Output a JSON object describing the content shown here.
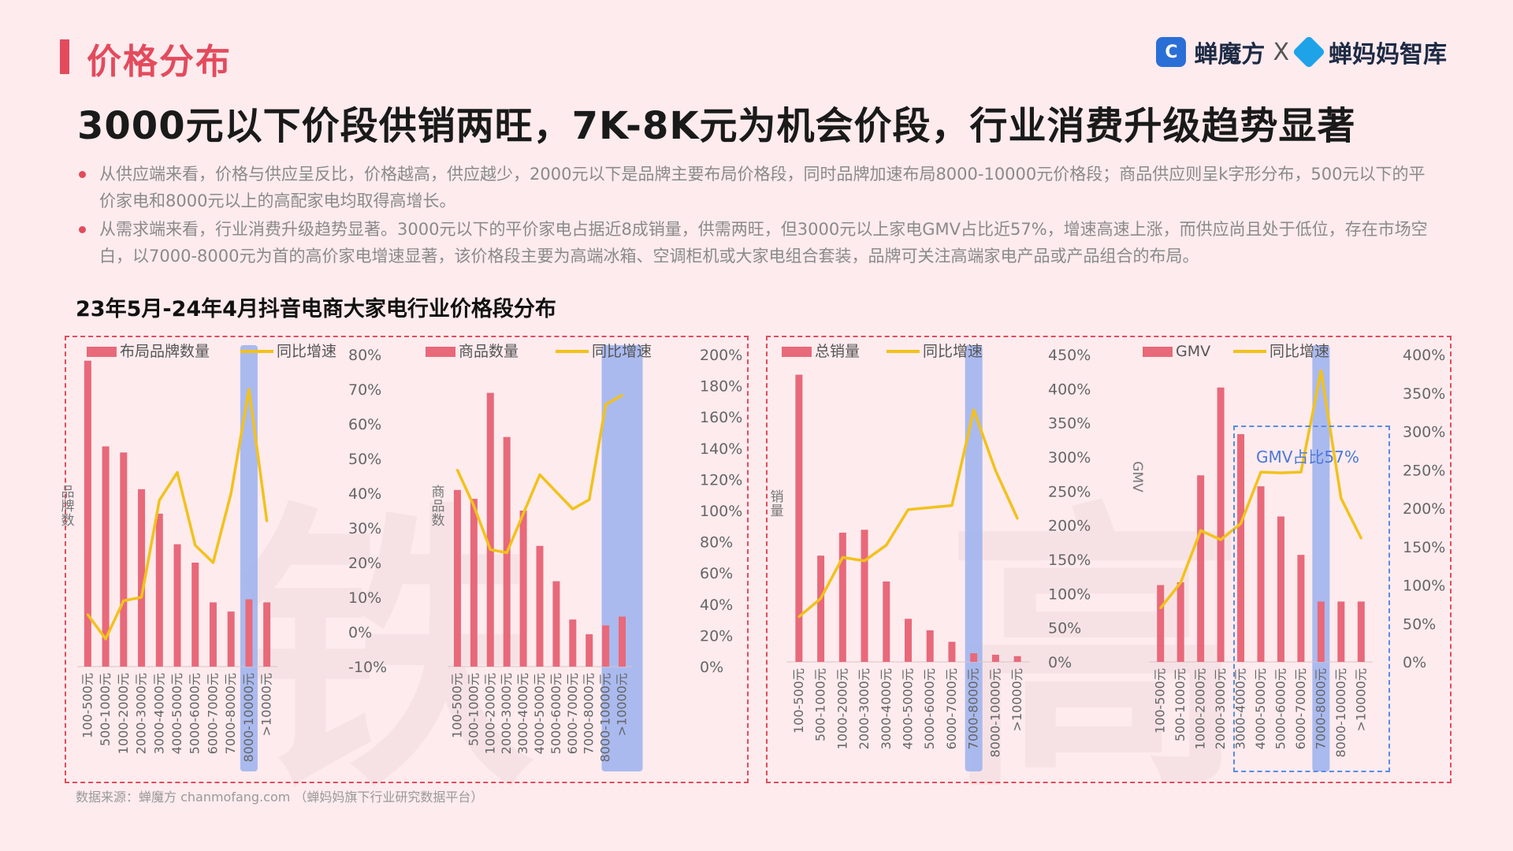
{
  "header": {
    "section_title": "价格分布",
    "headline": "3000元以下价段供销两旺，7K-8K元为机会价段，行业消费升级趋势显著",
    "logo_left": "蝉魔方",
    "logo_sep": "X",
    "logo_right": "蝉妈妈智库"
  },
  "bullets": [
    "从供应端来看，价格与供应呈反比，价格越高，供应越少，2000元以下是品牌主要布局价格段，同时品牌加速布局8000-10000元价格段；商品供应则呈k字形分布，500元以下的平价家电和8000元以上的高配家电均取得高增长。",
    "从需求端来看，行业消费升级趋势显著。3000元以下的平价家电占据近8成销量，供需两旺，但3000元以上家电GMV占比近57%，增速高速上涨，而供应尚且处于低位，存在市场空白，以7000-8000元为首的高价家电增速显著，该价格段主要为高端冰箱、空调柜机或大家电组合套装，品牌可关注高端家电产品或产品组合的布局。"
  ],
  "chart_title": "23年5月-24年4月抖音电商大家电行业价格段分布",
  "source": "数据来源：蝉魔方 chanmofang.com （蝉妈妈旗下行业研究数据平台）",
  "gmv_annotation": "GMV占比57%",
  "colors": {
    "bar": "#e8697a",
    "line": "#f2c21a",
    "highlight": "#9bb2ee",
    "accent": "#e34b5d"
  },
  "chart_data": [
    {
      "type": "bar",
      "categories": [
        "100-500元",
        "500-1000元",
        "1000-2000元",
        "2000-3000元",
        "3000-4000元",
        "4000-5000元",
        "5000-6000元",
        "6000-7000元",
        "7000-8000元",
        "8000-10000元",
        ">10000元"
      ],
      "series": [
        {
          "name": "布局品牌数量",
          "kind": "bar",
          "axis": "left",
          "values": [
            100,
            72,
            70,
            58,
            50,
            40,
            34,
            21,
            18,
            22,
            21
          ]
        },
        {
          "name": "同比增速",
          "kind": "line",
          "axis": "right",
          "values": [
            0.05,
            -0.02,
            0.09,
            0.1,
            0.38,
            0.46,
            0.25,
            0.2,
            0.4,
            0.7,
            0.32
          ]
        }
      ],
      "ylabel": "品牌数",
      "y2_ticks": [
        "80%",
        "70%",
        "60%",
        "50%",
        "40%",
        "30%",
        "20%",
        "10%",
        "0%",
        "-10%"
      ],
      "y2lim": [
        -0.1,
        0.8
      ],
      "ylim": [
        0,
        102
      ],
      "highlight_category": "8000-10000元"
    },
    {
      "type": "bar",
      "categories": [
        "100-500元",
        "500-1000元",
        "1000-2000元",
        "2000-3000元",
        "3000-4000元",
        "4000-5000元",
        "5000-6000元",
        "6000-7000元",
        "7000-8000元",
        "8000-10000元",
        ">10000元"
      ],
      "series": [
        {
          "name": "商品数量",
          "kind": "bar",
          "axis": "left",
          "values": [
            60,
            57,
            93,
            78,
            53,
            41,
            29,
            16,
            11,
            14,
            17
          ]
        },
        {
          "name": "同比增速",
          "kind": "line",
          "axis": "right",
          "values": [
            1.26,
            1.03,
            0.75,
            0.73,
            0.98,
            1.23,
            1.12,
            1.01,
            1.07,
            1.68,
            1.74
          ]
        }
      ],
      "ylabel": "商品数",
      "y2_ticks": [
        "200%",
        "180%",
        "160%",
        "140%",
        "120%",
        "100%",
        "80%",
        "60%",
        "40%",
        "20%",
        "0%"
      ],
      "y2lim": [
        0,
        2.0
      ],
      "ylim": [
        0,
        106
      ],
      "highlight_category": ">10000元"
    },
    {
      "type": "bar",
      "categories": [
        "100-500元",
        "500-1000元",
        "1000-2000元",
        "2000-3000元",
        "3000-4000元",
        "4000-5000元",
        "5000-6000元",
        "6000-7000元",
        "7000-8000元",
        "8000-10000元",
        ">10000元"
      ],
      "series": [
        {
          "name": "总销量",
          "kind": "bar",
          "axis": "left",
          "values": [
            100,
            37,
            45,
            46,
            28,
            15,
            11,
            7,
            3,
            2.5,
            2
          ]
        },
        {
          "name": "同比增速",
          "kind": "line",
          "axis": "right",
          "values": [
            0.66,
            0.93,
            1.53,
            1.48,
            1.71,
            2.23,
            2.26,
            2.29,
            3.69,
            2.8,
            2.1
          ]
        }
      ],
      "ylabel": "销量",
      "y2_ticks": [
        "450%",
        "400%",
        "350%",
        "300%",
        "250%",
        "200%",
        "150%",
        "100%",
        "50%",
        "0%"
      ],
      "y2lim": [
        0,
        4.5
      ],
      "ylim": [
        0,
        107
      ],
      "highlight_category": "7000-8000元"
    },
    {
      "type": "bar",
      "categories": [
        "100-500元",
        "500-1000元",
        "1000-2000元",
        "2000-3000元",
        "3000-4000元",
        "4000-5000元",
        "5000-6000元",
        "6000-7000元",
        "7000-8000元",
        "8000-10000元",
        ">10000元"
      ],
      "series": [
        {
          "name": "GMV",
          "kind": "bar",
          "axis": "left",
          "values": [
            28,
            29,
            68,
            100,
            83,
            64,
            53,
            39,
            22,
            22,
            22
          ]
        },
        {
          "name": "同比增速",
          "kind": "line",
          "axis": "right",
          "values": [
            0.7,
            1.03,
            1.71,
            1.59,
            1.8,
            2.47,
            2.46,
            2.47,
            3.79,
            2.13,
            1.61
          ]
        }
      ],
      "ylabel": "GMV",
      "y2_ticks": [
        "400%",
        "350%",
        "300%",
        "250%",
        "200%",
        "150%",
        "100%",
        "50%",
        "0%"
      ],
      "y2lim": [
        0,
        4.0
      ],
      "ylim": [
        0,
        112
      ],
      "highlight_category": "7000-8000元"
    }
  ]
}
